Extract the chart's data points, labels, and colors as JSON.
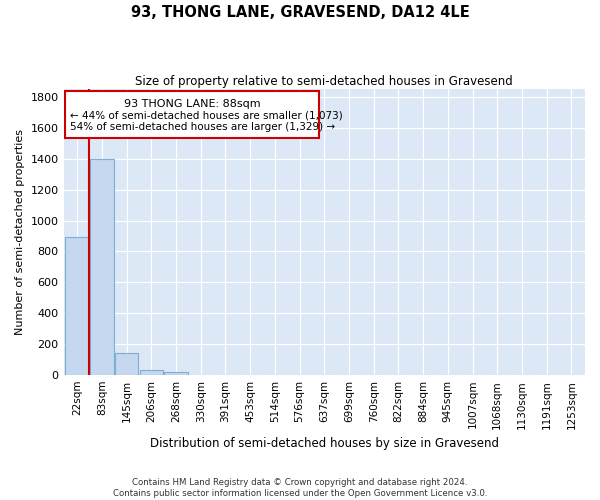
{
  "title": "93, THONG LANE, GRAVESEND, DA12 4LE",
  "subtitle": "Size of property relative to semi-detached houses in Gravesend",
  "xlabel": "Distribution of semi-detached houses by size in Gravesend",
  "ylabel": "Number of semi-detached properties",
  "categories": [
    "22sqm",
    "83sqm",
    "145sqm",
    "206sqm",
    "268sqm",
    "330sqm",
    "391sqm",
    "453sqm",
    "514sqm",
    "576sqm",
    "637sqm",
    "699sqm",
    "760sqm",
    "822sqm",
    "884sqm",
    "945sqm",
    "1007sqm",
    "1068sqm",
    "1130sqm",
    "1191sqm",
    "1253sqm"
  ],
  "values": [
    893,
    1400,
    140,
    33,
    20,
    0,
    0,
    0,
    0,
    0,
    0,
    0,
    0,
    0,
    0,
    0,
    0,
    0,
    0,
    0,
    0
  ],
  "bar_color": "#c5d8ef",
  "bar_edge_color": "#7bafd4",
  "annotation_label": "93 THONG LANE: 88sqm",
  "annotation_line1": "← 44% of semi-detached houses are smaller (1,073)",
  "annotation_line2": "54% of semi-detached houses are larger (1,329) →",
  "box_color": "#ffffff",
  "box_edge_color": "#cc0000",
  "line_color": "#cc0000",
  "ylim": [
    0,
    1850
  ],
  "yticks": [
    0,
    200,
    400,
    600,
    800,
    1000,
    1200,
    1400,
    1600,
    1800
  ],
  "bg_color": "#dce8f5",
  "grid_color": "#ffffff",
  "fig_bg_color": "#ffffff",
  "footer1": "Contains HM Land Registry data © Crown copyright and database right 2024.",
  "footer2": "Contains public sector information licensed under the Open Government Licence v3.0."
}
